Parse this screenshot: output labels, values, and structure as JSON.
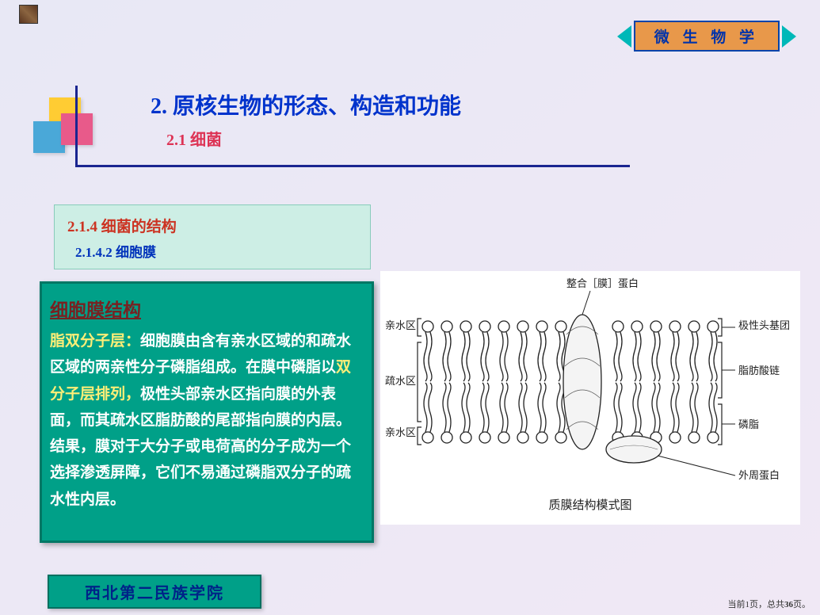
{
  "banner": {
    "title": "微 生 物 学"
  },
  "header": {
    "main_title": "2.  原核生物的形态、构造和功能",
    "sub_title": "2.1  细菌"
  },
  "section": {
    "num": "2.1.4  细菌的结构",
    "sub": "2.1.4.2  细胞膜"
  },
  "content": {
    "title": "细胞膜结构",
    "lead": "脂双分子层：",
    "body_1": "细胞膜由含有亲水区域的和疏水区域的两亲性分子磷脂组成。在膜中磷脂以",
    "highlight": "双分子层排列，",
    "body_2": "极性头部亲水区指向膜的外表面，而其疏水区脂肪酸的尾部指向膜的内层。结果，膜对于大分子或电荷高的分子成为一个选择渗透屏障，它们不易通过磷脂双分子的疏水性内层。"
  },
  "diagram": {
    "title": "质膜结构模式图",
    "labels": {
      "integral": "整合［膜］蛋白",
      "hydrophilic": "亲水区",
      "hydrophobic": "疏水区",
      "polar_head": "极性头基团",
      "fatty_chain": "脂肪酸链",
      "phospholipid": "磷脂",
      "peripheral": "外周蛋白"
    },
    "colors": {
      "stroke": "#222222",
      "text": "#222222",
      "bg": "#ffffff"
    },
    "title_fontsize": 15,
    "label_fontsize": 13
  },
  "footer": {
    "school": "西北第二民族学院",
    "page_prefix": "当前",
    "page_current": "1",
    "page_mid": "页，总共",
    "page_total": "36",
    "page_suffix": "页。"
  }
}
